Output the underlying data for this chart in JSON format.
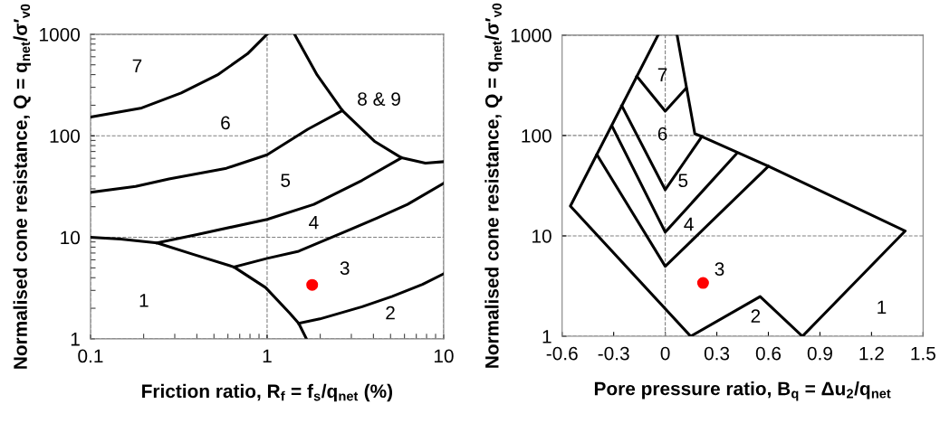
{
  "chart_data": [
    {
      "type": "line",
      "xlabel": "Friction ratio, R$_{f}$ = f$_{s}$/q$_{net}$ (%)",
      "ylabel": "Normalised cone resistance, Q = q$_{net}$/σ′$_{v0}$",
      "log": "xy",
      "xlim": [
        0.1,
        10
      ],
      "ylim": [
        1,
        1000
      ],
      "xticks": [
        0.1,
        1,
        10
      ],
      "yticks": [
        1,
        10,
        100,
        1000
      ],
      "grid": true,
      "series": [
        {
          "color": "#000000",
          "x": [
            0.1,
            0.195,
            0.326,
            0.523,
            0.774,
            1.0
          ],
          "values": [
            153,
            188,
            264,
            397,
            641,
            1000
          ]
        },
        {
          "color": "#000000",
          "x": [
            0.1,
            0.18,
            0.278,
            0.588,
            1.0,
            1.7,
            2.67
          ],
          "values": [
            27.7,
            31.7,
            37.6,
            47.9,
            65,
            116,
            177
          ]
        },
        {
          "color": "#000000",
          "x": [
            1.43,
            1.92,
            2.67,
            4.05,
            5.77,
            7.88,
            10
          ],
          "values": [
            1000,
            397,
            177,
            88.5,
            60.7,
            53.7,
            55.6
          ]
        },
        {
          "color": "#000000",
          "x": [
            0.238,
            0.396,
            1.0,
            1.84,
            3.45,
            5.77
          ],
          "values": [
            8.8,
            10.6,
            15.0,
            21.1,
            36.4,
            60.7
          ]
        },
        {
          "color": "#000000",
          "x": [
            0.1,
            0.148,
            0.238,
            0.381,
            0.649,
            0.98,
            1.34,
            1.51,
            1.67
          ],
          "values": [
            10,
            9.6,
            8.8,
            6.8,
            5.1,
            3.2,
            1.8,
            1.42,
            1
          ]
        },
        {
          "color": "#000000",
          "x": [
            0.649,
            1.0,
            1.51,
            2.52,
            4.21,
            6.24,
            10
          ],
          "values": [
            5.1,
            6.2,
            7.3,
            10.6,
            15.5,
            21.1,
            34
          ]
        },
        {
          "color": "#000000",
          "x": [
            1.51,
            1.99,
            3.45,
            5.12,
            7.59,
            10
          ],
          "values": [
            1.42,
            1.57,
            2.07,
            2.62,
            3.44,
            4.37
          ]
        },
        {
          "type": "scatter",
          "color": "#ff0000",
          "marker": "circle",
          "x": [
            1.8
          ],
          "values": [
            3.4
          ]
        }
      ],
      "annotations": [
        "7",
        "6",
        "8 & 9",
        "5",
        "4",
        "3",
        "1",
        "2"
      ]
    },
    {
      "type": "line",
      "xlabel": "Pore pressure ratio, B$_{q}$ = Δu$_{2}$/q$_{net}$",
      "ylabel": "Normalised cone resistance, Q = q$_{net}$/σ′$_{v0}$",
      "log": "y",
      "xlim": [
        -0.6,
        1.5
      ],
      "ylim": [
        1,
        1000
      ],
      "xticks": [
        -0.6,
        -0.3,
        0,
        0.3,
        0.6,
        0.9,
        1.2,
        1.5
      ],
      "yticks": [
        1,
        10,
        100,
        1000
      ],
      "grid": "y",
      "ref_lines": [
        {
          "axis": "x",
          "value": 0,
          "color": "#808080",
          "line_style": "dashed"
        }
      ],
      "series": [
        {
          "color": "#000000",
          "x": [
            -0.042,
            -0.552,
            0.148,
            0.552,
            0.798,
            1.396,
            0.6,
            0.213,
            0.172,
            0.069
          ],
          "values": [
            1000,
            19.8,
            1,
            2.49,
            1,
            11.2,
            49.4,
            97.7,
            104,
            1000
          ]
        },
        {
          "color": "#000000",
          "x": [
            -0.165,
            0,
            0.12
          ],
          "values": [
            388,
            175,
            294
          ]
        },
        {
          "color": "#000000",
          "x": [
            -0.253,
            0,
            0.213
          ],
          "values": [
            198,
            28.8,
            97.7
          ]
        },
        {
          "color": "#000000",
          "x": [
            -0.31,
            0,
            0.412
          ],
          "values": [
            124,
            10.9,
            65.2
          ]
        },
        {
          "color": "#000000",
          "x": [
            -0.397,
            0,
            0.6
          ],
          "values": [
            64.3,
            4.98,
            49.4
          ]
        },
        {
          "type": "scatter",
          "color": "#ff0000",
          "marker": "circle",
          "x": [
            0.22
          ],
          "values": [
            3.4
          ]
        }
      ],
      "annotations": [
        "7",
        "6",
        "5",
        "4",
        "3",
        "2",
        "1"
      ]
    }
  ]
}
